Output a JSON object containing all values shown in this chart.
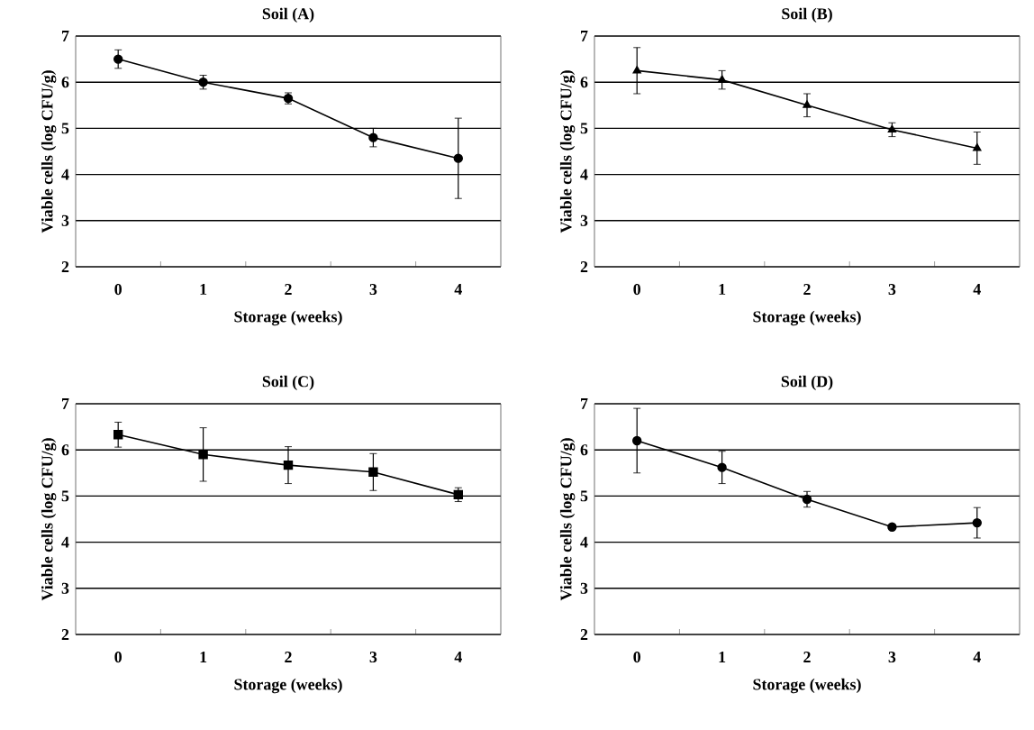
{
  "chart_data": [
    {
      "type": "line",
      "title": "Soil (A)",
      "xlabel": "Storage (weeks)",
      "ylabel": "Viable cells (log CFU/g)",
      "categories": [
        "0",
        "1",
        "2",
        "3",
        "4"
      ],
      "values": [
        6.5,
        6.0,
        5.65,
        4.8,
        4.35
      ],
      "errors": [
        0.2,
        0.15,
        0.12,
        0.2,
        0.87
      ],
      "color": "#000000",
      "marker": "circle",
      "ylim": [
        2,
        7
      ],
      "yticks": [
        2,
        3,
        4,
        5,
        6,
        7
      ],
      "grid": "y"
    },
    {
      "type": "line",
      "title": "Soil (B)",
      "xlabel": "Storage (weeks)",
      "ylabel": "Viable cells (log CFU/g)",
      "categories": [
        "0",
        "1",
        "2",
        "3",
        "4"
      ],
      "values": [
        6.25,
        6.05,
        5.5,
        4.97,
        4.57
      ],
      "errors": [
        0.5,
        0.2,
        0.25,
        0.15,
        0.35
      ],
      "color": "#000000",
      "marker": "triangle",
      "ylim": [
        2,
        7
      ],
      "yticks": [
        2,
        3,
        4,
        5,
        6,
        7
      ],
      "grid": "y"
    },
    {
      "type": "line",
      "title": "Soil (C)",
      "xlabel": "Storage (weeks)",
      "ylabel": "Viable cells (log CFU/g)",
      "categories": [
        "0",
        "1",
        "2",
        "3",
        "4"
      ],
      "values": [
        6.33,
        5.9,
        5.67,
        5.52,
        5.03
      ],
      "errors": [
        0.27,
        0.58,
        0.4,
        0.4,
        0.15
      ],
      "color": "#000000",
      "marker": "square",
      "ylim": [
        2,
        7
      ],
      "yticks": [
        2,
        3,
        4,
        5,
        6,
        7
      ],
      "grid": "y"
    },
    {
      "type": "line",
      "title": "Soil (D)",
      "xlabel": "Storage (weeks)",
      "ylabel": "Viable cells (log CFU/g)",
      "categories": [
        "0",
        "1",
        "2",
        "3",
        "4"
      ],
      "values": [
        6.2,
        5.62,
        4.93,
        4.33,
        4.42
      ],
      "errors": [
        0.7,
        0.35,
        0.17,
        null,
        0.33
      ],
      "color": "#000000",
      "marker": "circle",
      "ylim": [
        2,
        7
      ],
      "yticks": [
        2,
        3,
        4,
        5,
        6,
        7
      ],
      "grid": "y"
    }
  ]
}
